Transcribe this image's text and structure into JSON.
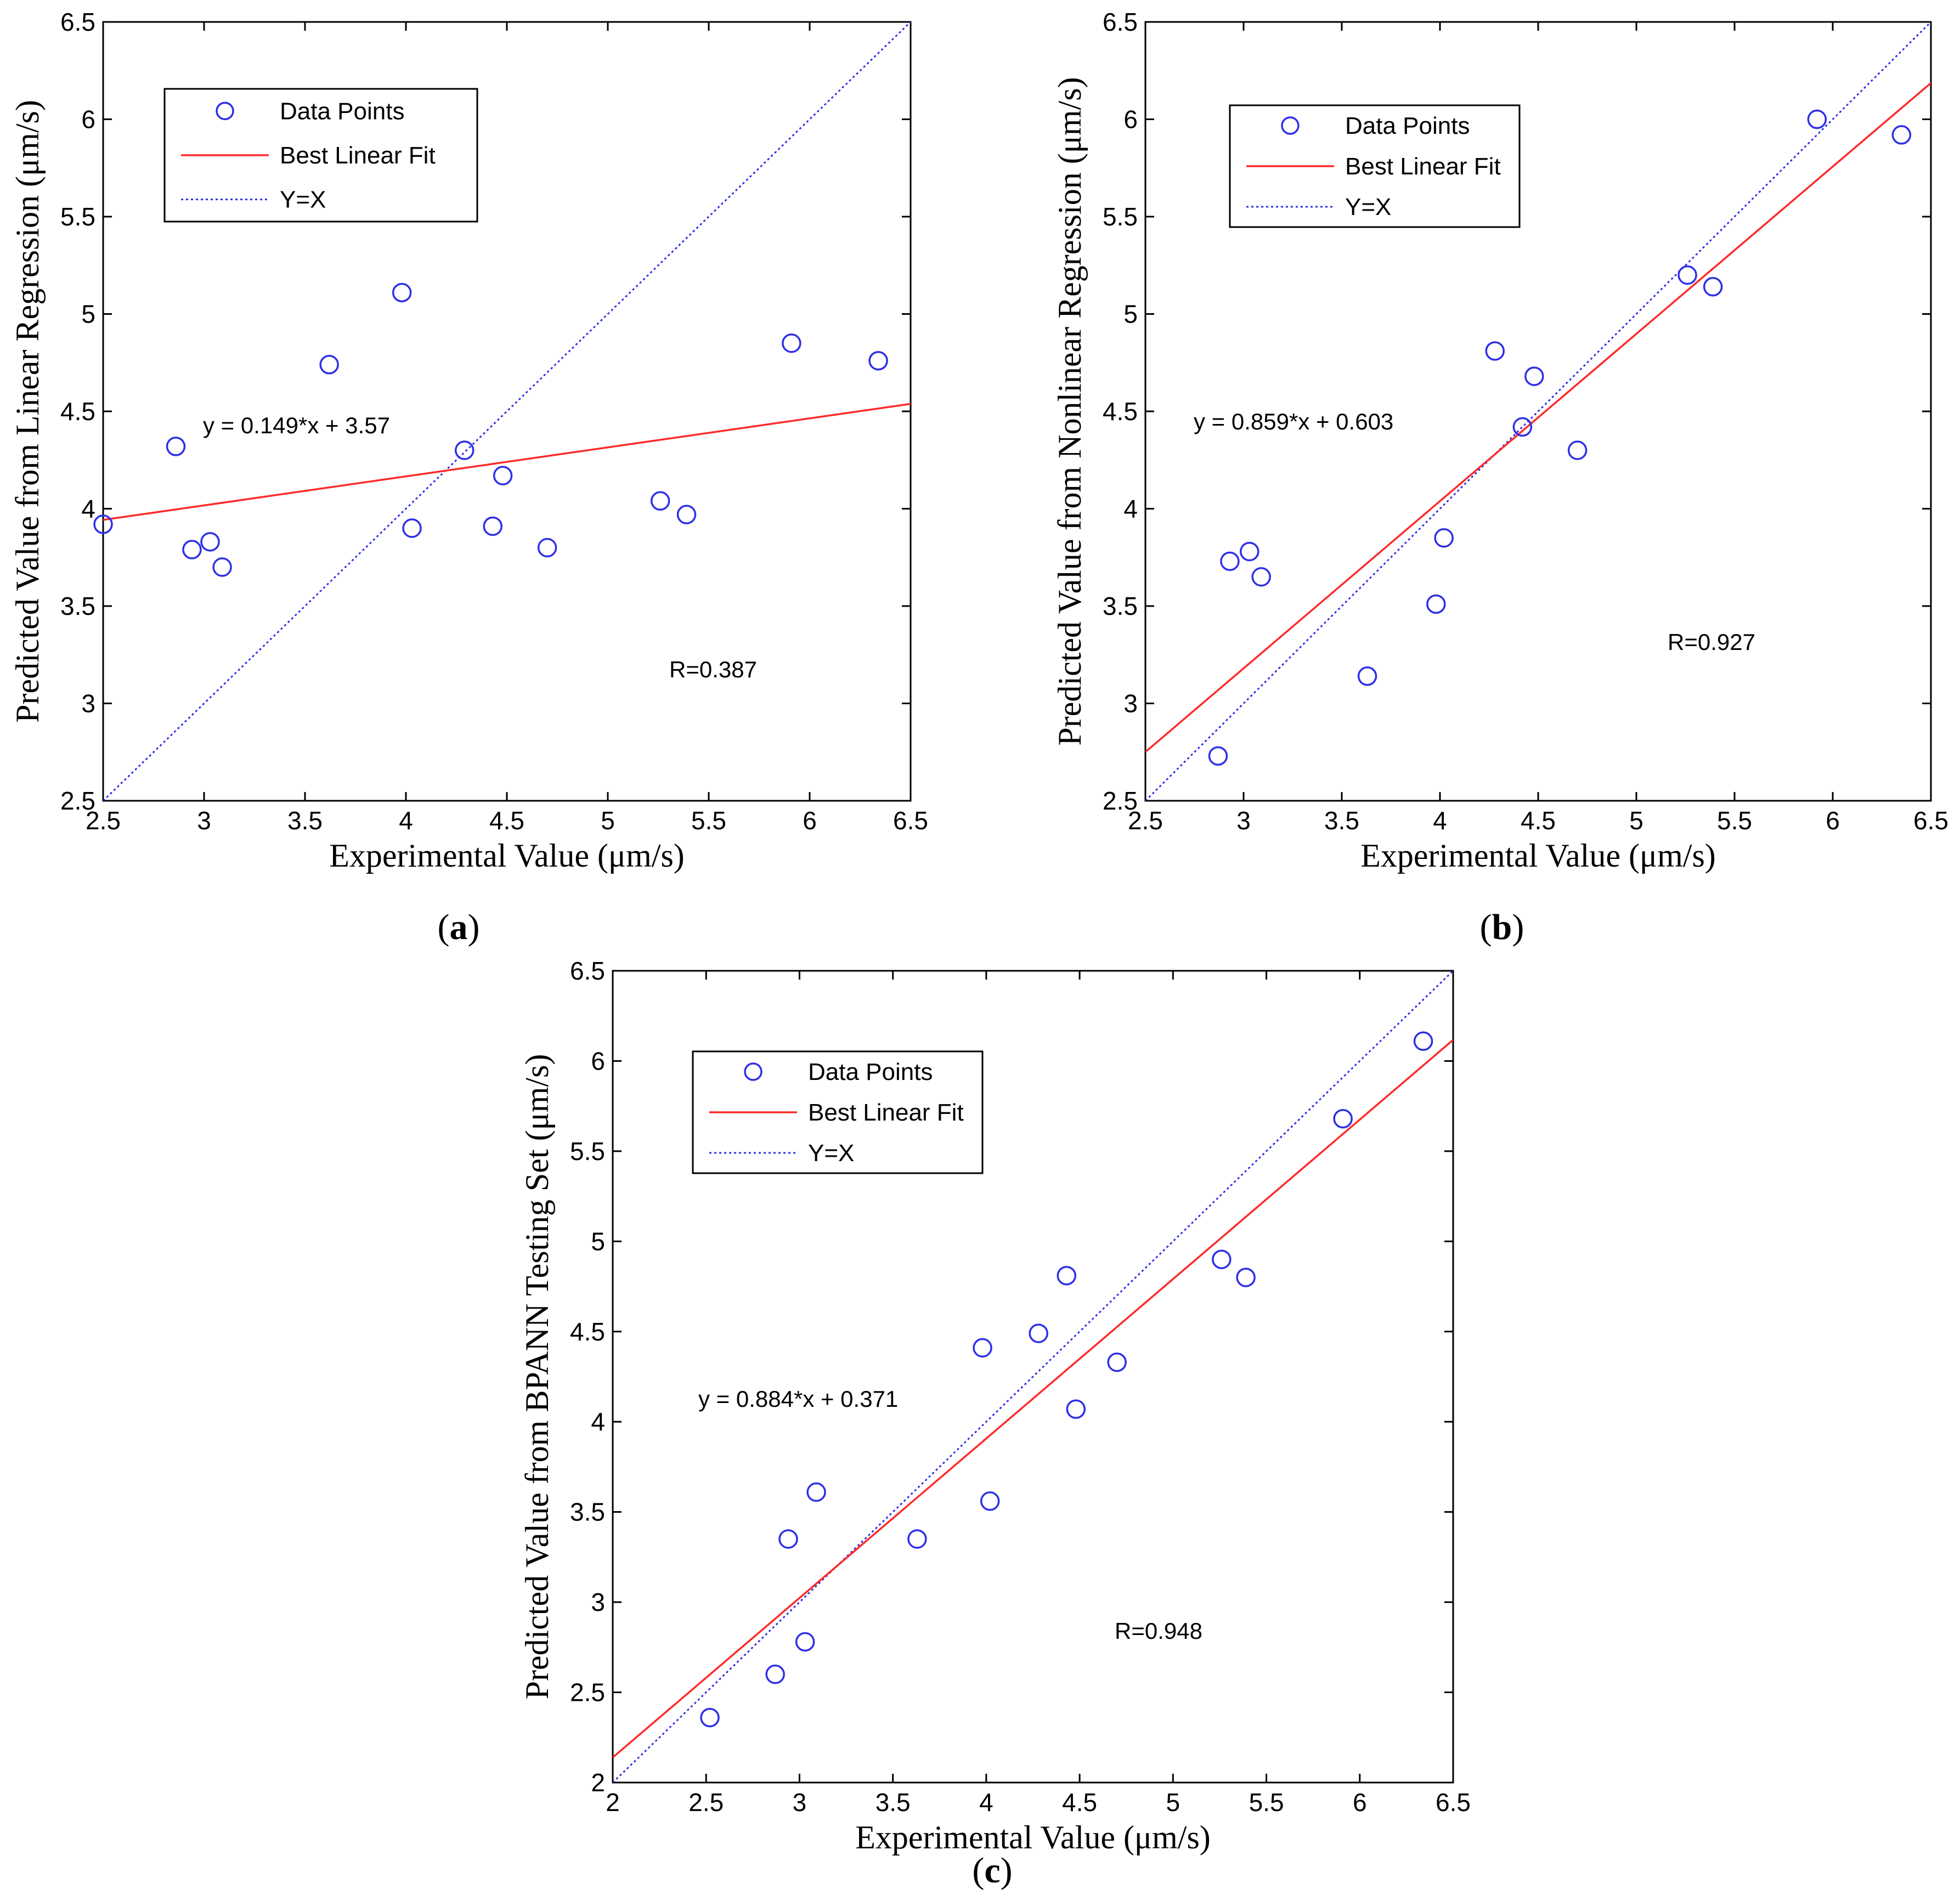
{
  "chart_data": [
    {
      "type": "scatter",
      "panel": "a",
      "caption": "a",
      "xlabel": "Experimental Value (μm/s)",
      "ylabel": "Predicted Value from Linear Regression (μm/s)",
      "xlim": [
        2.5,
        6.5
      ],
      "ylim": [
        2.5,
        6.5
      ],
      "xticks": [
        "2.5",
        "3",
        "3.5",
        "4",
        "4.5",
        "5",
        "5.5",
        "6",
        "6.5"
      ],
      "yticks": [
        "2.5",
        "3",
        "3.5",
        "4",
        "4.5",
        "5",
        "5.5",
        "6",
        "6.5"
      ],
      "legend": {
        "items": [
          "Data Points",
          "Best Linear Fit",
          "Y=X"
        ],
        "position": "top-left"
      },
      "equation": "y = 0.149*x + 3.57",
      "r_text": "R=0.387",
      "fit": {
        "slope": 0.149,
        "intercept": 3.57
      },
      "points": [
        {
          "x": 2.5,
          "y": 3.92
        },
        {
          "x": 2.86,
          "y": 4.32
        },
        {
          "x": 2.94,
          "y": 3.79
        },
        {
          "x": 3.03,
          "y": 3.83
        },
        {
          "x": 3.09,
          "y": 3.7
        },
        {
          "x": 3.62,
          "y": 4.74
        },
        {
          "x": 3.98,
          "y": 5.11
        },
        {
          "x": 4.03,
          "y": 3.9
        },
        {
          "x": 4.29,
          "y": 4.3
        },
        {
          "x": 4.43,
          "y": 3.91
        },
        {
          "x": 4.48,
          "y": 4.17
        },
        {
          "x": 4.7,
          "y": 3.8
        },
        {
          "x": 5.26,
          "y": 4.04
        },
        {
          "x": 5.39,
          "y": 3.97
        },
        {
          "x": 5.91,
          "y": 4.85
        },
        {
          "x": 6.34,
          "y": 4.76
        }
      ]
    },
    {
      "type": "scatter",
      "panel": "b",
      "caption": "b",
      "xlabel": "Experimental Value (μm/s)",
      "ylabel": "Predicted Value from Nonlinear Regression (μm/s)",
      "xlim": [
        2.5,
        6.5
      ],
      "ylim": [
        2.5,
        6.5
      ],
      "xticks": [
        "2.5",
        "3",
        "3.5",
        "4",
        "4.5",
        "5",
        "5.5",
        "6",
        "6.5"
      ],
      "yticks": [
        "2.5",
        "3",
        "3.5",
        "4",
        "4.5",
        "5",
        "5.5",
        "6",
        "6.5"
      ],
      "legend": {
        "items": [
          "Data Points",
          "Best Linear Fit",
          "Y=X"
        ],
        "position": "top-left"
      },
      "equation": "y = 0.859*x + 0.603",
      "r_text": "R=0.927",
      "fit": {
        "slope": 0.859,
        "intercept": 0.603
      },
      "points": [
        {
          "x": 2.87,
          "y": 2.73
        },
        {
          "x": 2.93,
          "y": 3.73
        },
        {
          "x": 3.03,
          "y": 3.78
        },
        {
          "x": 3.09,
          "y": 3.65
        },
        {
          "x": 3.63,
          "y": 3.14
        },
        {
          "x": 3.98,
          "y": 3.51
        },
        {
          "x": 4.02,
          "y": 3.85
        },
        {
          "x": 4.28,
          "y": 4.81
        },
        {
          "x": 4.42,
          "y": 4.42
        },
        {
          "x": 4.48,
          "y": 4.68
        },
        {
          "x": 4.7,
          "y": 4.3
        },
        {
          "x": 5.26,
          "y": 5.2
        },
        {
          "x": 5.39,
          "y": 5.14
        },
        {
          "x": 5.92,
          "y": 6.0
        },
        {
          "x": 6.35,
          "y": 5.92
        }
      ]
    },
    {
      "type": "scatter",
      "panel": "c",
      "caption": "c",
      "xlabel": "Experimental Value (μm/s)",
      "ylabel": "Predicted Value from BPANN Testing Set (μm/s)",
      "xlim": [
        2.0,
        6.5
      ],
      "ylim": [
        2.0,
        6.5
      ],
      "xticks": [
        "2",
        "2.5",
        "3",
        "3.5",
        "4",
        "4.5",
        "5",
        "5.5",
        "6",
        "6.5"
      ],
      "yticks": [
        "2",
        "2.5",
        "3",
        "3.5",
        "4",
        "4.5",
        "5",
        "5.5",
        "6",
        "6.5"
      ],
      "legend": {
        "items": [
          "Data Points",
          "Best Linear Fit",
          "Y=X"
        ],
        "position": "top-left"
      },
      "equation": "y = 0.884*x + 0.371",
      "r_text": "R=0.948",
      "fit": {
        "slope": 0.884,
        "intercept": 0.371
      },
      "points": [
        {
          "x": 2.52,
          "y": 2.36
        },
        {
          "x": 2.87,
          "y": 2.6
        },
        {
          "x": 2.94,
          "y": 3.35
        },
        {
          "x": 3.03,
          "y": 2.78
        },
        {
          "x": 3.09,
          "y": 3.61
        },
        {
          "x": 3.63,
          "y": 3.35
        },
        {
          "x": 3.98,
          "y": 4.41
        },
        {
          "x": 4.02,
          "y": 3.56
        },
        {
          "x": 4.28,
          "y": 4.49
        },
        {
          "x": 4.43,
          "y": 4.81
        },
        {
          "x": 4.48,
          "y": 4.07
        },
        {
          "x": 4.7,
          "y": 4.33
        },
        {
          "x": 5.26,
          "y": 4.9
        },
        {
          "x": 5.39,
          "y": 4.8
        },
        {
          "x": 5.91,
          "y": 5.68
        },
        {
          "x": 6.34,
          "y": 6.11
        }
      ]
    }
  ],
  "colors": {
    "points": "#2f2fe8",
    "fit": "#ff2a2a",
    "identity": "#2f2fe8"
  }
}
